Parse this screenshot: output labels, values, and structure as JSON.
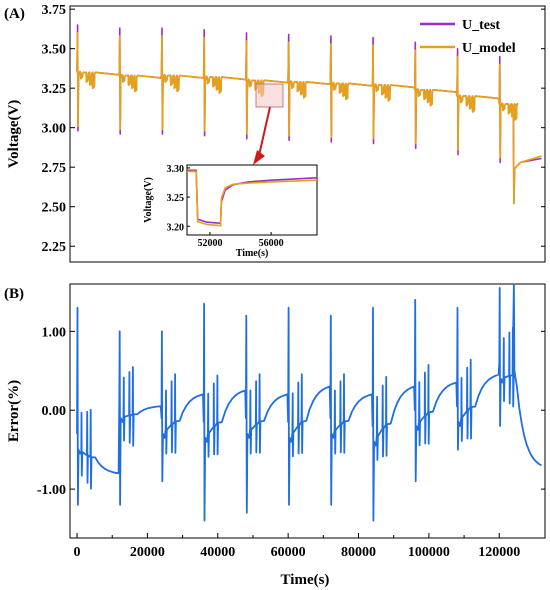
{
  "chart_data": [
    {
      "panel": "(A)",
      "type": "line",
      "ylabel": "Voltage(V)",
      "xlim": [
        -2000,
        133000
      ],
      "ylim": [
        2.15,
        3.77
      ],
      "yticks": [
        "2.25",
        "2.50",
        "2.75",
        "3.00",
        "3.25",
        "3.50",
        "3.75"
      ],
      "ytick_values": [
        2.25,
        2.5,
        2.75,
        3.0,
        3.25,
        3.5,
        3.75
      ],
      "legend_position": "top-right",
      "series": [
        {
          "name": "U_test",
          "color": "#9b2fc4"
        },
        {
          "name": "U_model",
          "color": "#e6a117"
        }
      ],
      "pulse_cycles": [
        {
          "t": 0,
          "base": 3.35
        },
        {
          "t": 12000,
          "base": 3.33
        },
        {
          "t": 24000,
          "base": 3.33
        },
        {
          "t": 36000,
          "base": 3.32
        },
        {
          "t": 48000,
          "base": 3.3
        },
        {
          "t": 60000,
          "base": 3.29
        },
        {
          "t": 72000,
          "base": 3.28
        },
        {
          "t": 84000,
          "base": 3.27
        },
        {
          "t": 96000,
          "base": 3.24
        },
        {
          "t": 108000,
          "base": 3.2
        },
        {
          "t": 120000,
          "base": 3.15
        }
      ],
      "final_level": 2.82,
      "inset": {
        "xlabel": "Time(s)",
        "ylabel": "Voltage(V)",
        "xlim": [
          50500,
          59000
        ],
        "ylim": [
          3.185,
          3.305
        ],
        "xticks": [
          "52000",
          "56000"
        ],
        "xtick_values": [
          52000,
          56000
        ],
        "yticks": [
          "3.20",
          "3.25",
          "3.30"
        ],
        "ytick_values": [
          3.2,
          3.25,
          3.3
        ],
        "test": [
          [
            50500,
            3.296
          ],
          [
            51100,
            3.296
          ],
          [
            51200,
            3.212
          ],
          [
            51800,
            3.207
          ],
          [
            52700,
            3.205
          ],
          [
            52750,
            3.242
          ],
          [
            53000,
            3.262
          ],
          [
            53500,
            3.271
          ],
          [
            54500,
            3.276
          ],
          [
            56000,
            3.279
          ],
          [
            59000,
            3.283
          ]
        ],
        "model": [
          [
            50500,
            3.294
          ],
          [
            51100,
            3.294
          ],
          [
            51200,
            3.208
          ],
          [
            51800,
            3.203
          ],
          [
            52700,
            3.201
          ],
          [
            52750,
            3.248
          ],
          [
            53000,
            3.266
          ],
          [
            53500,
            3.272
          ],
          [
            54500,
            3.274
          ],
          [
            56000,
            3.276
          ],
          [
            59000,
            3.279
          ]
        ]
      }
    },
    {
      "panel": "(B)",
      "type": "line",
      "xlabel": "Time(s)",
      "ylabel": "Error(%)",
      "xlim": [
        -2000,
        133000
      ],
      "ylim": [
        -1.62,
        1.6
      ],
      "xticks": [
        "0",
        "20000",
        "40000",
        "60000",
        "80000",
        "100000",
        "120000"
      ],
      "xtick_values": [
        0,
        20000,
        40000,
        60000,
        80000,
        100000,
        120000
      ],
      "yticks": [
        "-1.00",
        "0.00",
        "1.00"
      ],
      "ytick_values": [
        -1.0,
        0.0,
        1.0
      ],
      "series": [
        {
          "name": "",
          "color": "#1f6fe0"
        }
      ],
      "cycles": [
        {
          "t": 0,
          "start": -0.5,
          "end": -0.8,
          "up": 1.3,
          "down": -1.2
        },
        {
          "t": 12000,
          "start": -0.1,
          "end": 0.05,
          "up": 1.0,
          "down": -1.2
        },
        {
          "t": 24000,
          "start": -0.3,
          "end": 0.2,
          "up": 1.0,
          "down": -0.9
        },
        {
          "t": 36000,
          "start": -0.35,
          "end": 0.25,
          "up": 1.35,
          "down": -1.4
        },
        {
          "t": 48000,
          "start": -0.3,
          "end": 0.2,
          "up": 1.2,
          "down": -1.3
        },
        {
          "t": 60000,
          "start": -0.35,
          "end": 0.3,
          "up": 1.3,
          "down": -1.2
        },
        {
          "t": 72000,
          "start": -0.3,
          "end": 0.2,
          "up": 1.2,
          "down": -1.2
        },
        {
          "t": 84000,
          "start": -0.4,
          "end": 0.3,
          "up": 1.3,
          "down": -1.4
        },
        {
          "t": 96000,
          "start": -0.2,
          "end": 0.35,
          "up": 1.4,
          "down": -0.9
        },
        {
          "t": 108000,
          "start": -0.15,
          "end": 0.45,
          "up": 1.3,
          "down": -0.5
        },
        {
          "t": 120000,
          "start": 0.4,
          "end": 0.55,
          "up": 1.55,
          "down": -0.2
        }
      ],
      "final_level": -0.7
    }
  ]
}
